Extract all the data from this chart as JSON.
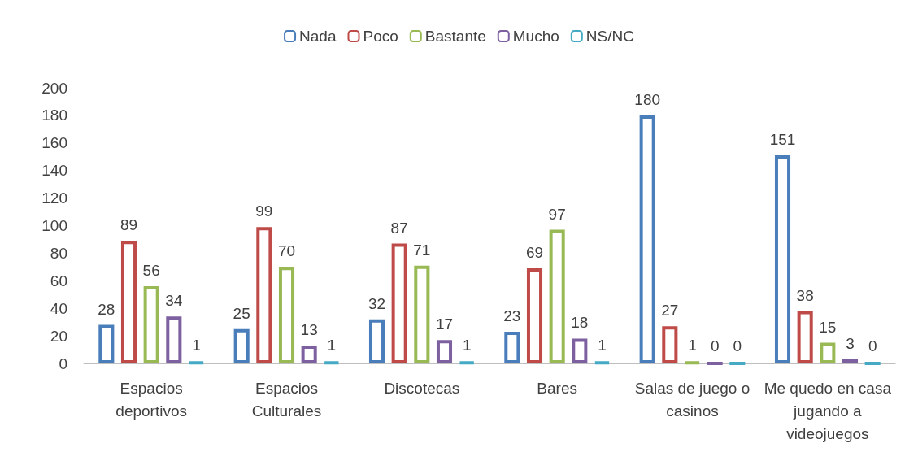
{
  "chart_data": {
    "type": "bar",
    "categories": [
      "Espacios deportivos",
      "Espacios Culturales",
      "Discotecas",
      "Bares",
      "Salas de juego o casinos",
      "Me quedo en casa jugando a videojuegos"
    ],
    "series": [
      {
        "name": "Nada",
        "color": "#4a7ebb",
        "values": [
          28,
          25,
          32,
          23,
          180,
          151
        ]
      },
      {
        "name": "Poco",
        "color": "#be4b48",
        "values": [
          89,
          99,
          87,
          69,
          27,
          38
        ]
      },
      {
        "name": "Bastante",
        "color": "#98b954",
        "values": [
          56,
          70,
          71,
          97,
          1,
          15
        ]
      },
      {
        "name": "Mucho",
        "color": "#7d60a0",
        "values": [
          34,
          13,
          17,
          18,
          0,
          3
        ]
      },
      {
        "name": "NS/NC",
        "color": "#46aac5",
        "values": [
          1,
          1,
          1,
          1,
          0,
          0
        ]
      }
    ],
    "ylim": [
      0,
      200
    ],
    "yticks": [
      0,
      20,
      40,
      60,
      80,
      100,
      120,
      140,
      160,
      180,
      200
    ],
    "grid": false,
    "legend": "top",
    "data_labels": true
  }
}
